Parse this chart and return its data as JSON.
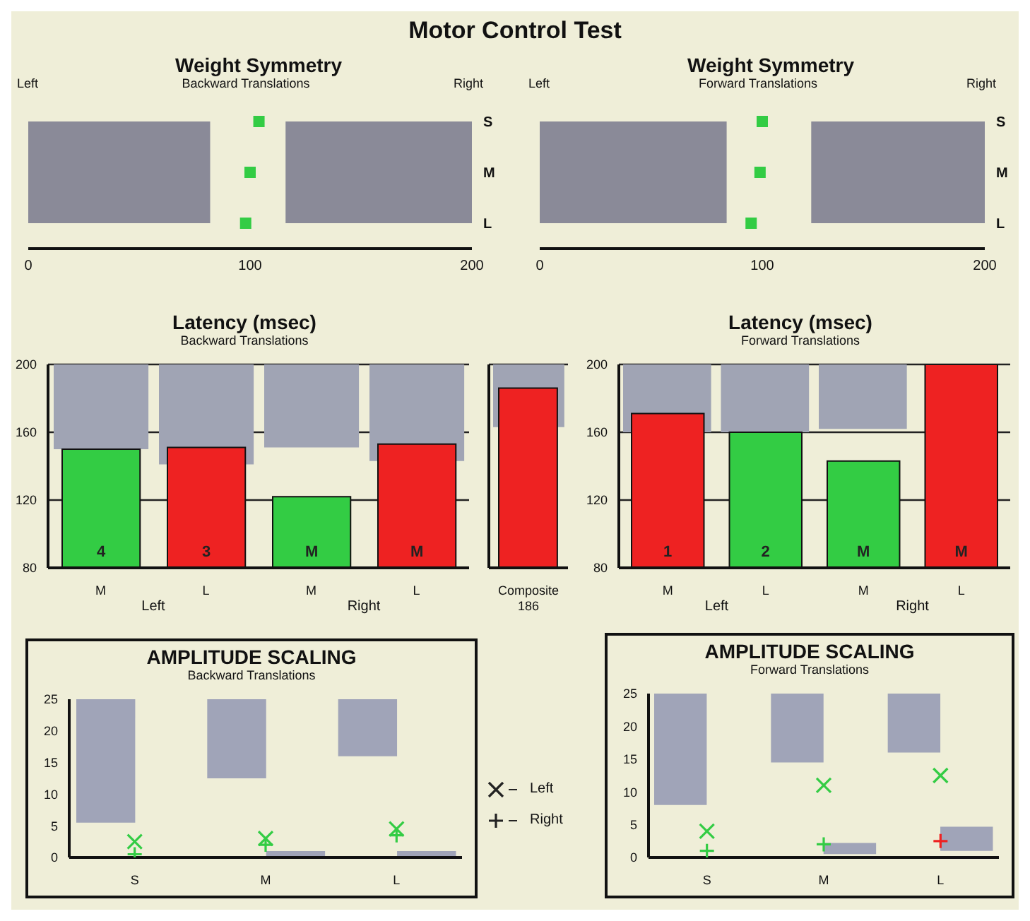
{
  "chart_data": [
    {
      "type": "scatter",
      "orientation": "horizontal",
      "title": "Weight Symmetry",
      "subtitle": "Backward Translations",
      "annotations": [
        "Motor Control Test",
        "Left",
        "Right"
      ],
      "categories": [
        "S",
        "M",
        "L"
      ],
      "values": [
        104,
        100,
        98
      ],
      "color": "#33cc44",
      "marker": "square",
      "xlim": [
        0,
        200
      ],
      "xticks": [
        0,
        100,
        200
      ],
      "bands": [
        {
          "axis": "x",
          "from": 0,
          "to": 82,
          "color": "#8a8a98"
        },
        {
          "axis": "x",
          "from": 116,
          "to": 200,
          "color": "#8a8a98"
        }
      ]
    },
    {
      "type": "scatter",
      "orientation": "horizontal",
      "title": "Weight Symmetry",
      "subtitle": "Forward Translations",
      "annotations": [
        "Left",
        "Right"
      ],
      "categories": [
        "S",
        "M",
        "L"
      ],
      "values": [
        100,
        99,
        95
      ],
      "color": "#33cc44",
      "marker": "square",
      "xlim": [
        0,
        200
      ],
      "xticks": [
        0,
        100,
        200
      ],
      "bands": [
        {
          "axis": "x",
          "from": 0,
          "to": 84,
          "color": "#8a8a98"
        },
        {
          "axis": "x",
          "from": 122,
          "to": 200,
          "color": "#8a8a98"
        }
      ]
    },
    {
      "type": "bar",
      "title": "Latency (msec)",
      "subtitle": "Backward Translations",
      "annotations": [
        "Left",
        "Right"
      ],
      "categories": [
        "M",
        "L",
        "M",
        "L"
      ],
      "ylim": [
        80,
        200
      ],
      "yticks": [
        80,
        120,
        160,
        200
      ],
      "grid": "y",
      "value_labels": [
        "4",
        "3",
        "M",
        "M"
      ],
      "series": [
        {
          "color": "#a0a4b4",
          "base": [
            150,
            141,
            151,
            143
          ],
          "values": [
            50,
            59,
            49,
            57
          ]
        },
        {
          "colors": [
            "#33cc44",
            "#ee2222",
            "#33cc44",
            "#ee2222"
          ],
          "values": [
            150,
            151,
            122,
            153
          ]
        }
      ]
    },
    {
      "type": "bar",
      "categories": [
        "Composite"
      ],
      "ylim": [
        80,
        200
      ],
      "yticks": [
        80,
        120,
        160,
        200
      ],
      "grid": "y",
      "tick_labels": "x",
      "value_labels": [
        "186"
      ],
      "series": [
        {
          "color": "#a0a4b4",
          "base": [
            163
          ],
          "values": [
            37
          ]
        },
        {
          "colors": [
            "#ee2222"
          ],
          "values": [
            186
          ]
        }
      ]
    },
    {
      "type": "bar",
      "title": "Latency (msec)",
      "subtitle": "Forward Translations",
      "annotations": [
        "Left",
        "Right"
      ],
      "categories": [
        "M",
        "L",
        "M",
        "L"
      ],
      "ylim": [
        80,
        200
      ],
      "yticks": [
        80,
        120,
        160,
        200
      ],
      "grid": "y",
      "value_labels": [
        "1",
        "2",
        "M",
        "M"
      ],
      "series": [
        {
          "color": "#a0a4b4",
          "base": [
            160,
            160,
            162,
            null
          ],
          "values": [
            40,
            40,
            38,
            null
          ]
        },
        {
          "colors": [
            "#ee2222",
            "#33cc44",
            "#33cc44",
            "#ee2222"
          ],
          "values": [
            171,
            160,
            143,
            200
          ]
        }
      ]
    },
    {
      "type": "scatter",
      "title": "AMPLITUDE SCALING",
      "subtitle": "Backward Translations",
      "categories": [
        "S",
        "M",
        "L"
      ],
      "ylim": [
        0,
        25
      ],
      "yticks": [
        0,
        5,
        10,
        15,
        20,
        25
      ],
      "legend": "right",
      "series": [
        {
          "type": "bar",
          "color": "#a0a4b8",
          "base": [
            5.5,
            12.5,
            16
          ],
          "values": [
            19.5,
            12.5,
            9
          ]
        },
        {
          "type": "bar",
          "color": "#a0a4b8",
          "base": [
            null,
            0,
            0
          ],
          "values": [
            null,
            1,
            1
          ]
        },
        {
          "name": "Left",
          "color": "#33cc44",
          "marker": "cross",
          "values": [
            2.5,
            3,
            4.5
          ]
        },
        {
          "name": "Right",
          "color": "#33cc44",
          "marker": "plus",
          "values": [
            0.5,
            2,
            3.5
          ]
        }
      ]
    },
    {
      "type": "scatter",
      "title": "AMPLITUDE SCALING",
      "subtitle": "Forward Translations",
      "categories": [
        "S",
        "M",
        "L"
      ],
      "ylim": [
        0,
        25
      ],
      "yticks": [
        0,
        5,
        10,
        15,
        20,
        25
      ],
      "series": [
        {
          "type": "bar",
          "color": "#a0a4b8",
          "base": [
            8,
            14.5,
            16
          ],
          "values": [
            17,
            10.5,
            9
          ]
        },
        {
          "type": "bar",
          "color": "#a0a4b8",
          "base": [
            null,
            0.5,
            1
          ],
          "values": [
            null,
            1.7,
            3.7
          ]
        },
        {
          "color": "#33cc44",
          "marker": "cross",
          "values": [
            4,
            11,
            12.5
          ]
        },
        {
          "color": "#33cc44",
          "colors": [
            "#33cc44",
            "#33cc44",
            "#ee2222"
          ],
          "marker": "plus",
          "values": [
            1,
            2,
            2.5
          ]
        }
      ]
    }
  ]
}
